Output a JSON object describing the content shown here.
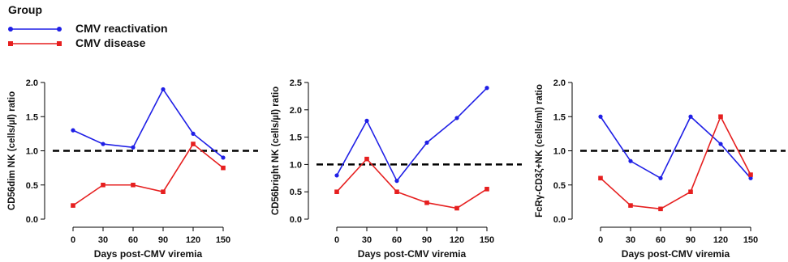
{
  "legend": {
    "title": "Group",
    "items": [
      {
        "label": "CMV reactivation",
        "color": "#1f1fe6",
        "marker": "circle"
      },
      {
        "label": "CMV disease",
        "color": "#e61f1f",
        "marker": "square"
      }
    ]
  },
  "colors": {
    "reactivation": "#1f1fe6",
    "disease": "#e61f1f",
    "reference_line": "#000000"
  },
  "chart_data": [
    {
      "type": "line",
      "xlabel": "Days post-CMV viremia",
      "ylabel": "CD56dim NK (cells/µl) ratio",
      "x": [
        0,
        30,
        60,
        90,
        120,
        150
      ],
      "xticks": [
        "0",
        "30",
        "60",
        "90",
        "120",
        "150"
      ],
      "yticks": [
        "0.0",
        "0.5",
        "1.0",
        "1.5",
        "2.0"
      ],
      "ylim": [
        0,
        2.0
      ],
      "reference_line": 1.0,
      "series": [
        {
          "name": "CMV reactivation",
          "values": [
            1.3,
            1.1,
            1.05,
            1.9,
            1.25,
            0.9
          ]
        },
        {
          "name": "CMV disease",
          "values": [
            0.2,
            0.5,
            0.5,
            0.4,
            1.1,
            0.75
          ]
        }
      ]
    },
    {
      "type": "line",
      "xlabel": "Days post-CMV viremia",
      "ylabel": "CD56bright NK (cells/µl) ratio",
      "x": [
        0,
        30,
        60,
        90,
        120,
        150
      ],
      "xticks": [
        "0",
        "30",
        "60",
        "90",
        "120",
        "150"
      ],
      "yticks": [
        "0.0",
        "0.5",
        "1.0",
        "1.5",
        "2.0",
        "2.5"
      ],
      "ylim": [
        0,
        2.5
      ],
      "reference_line": 1.0,
      "series": [
        {
          "name": "CMV reactivation",
          "values": [
            0.8,
            1.8,
            0.7,
            1.4,
            1.85,
            2.4
          ]
        },
        {
          "name": "CMV disease",
          "values": [
            0.5,
            1.1,
            0.5,
            0.3,
            0.2,
            0.55
          ]
        }
      ]
    },
    {
      "type": "line",
      "xlabel": "Days post-CMV viremia",
      "ylabel": "FcRγ-CD3ζ+NK (cells/ml) ratio",
      "x": [
        0,
        30,
        60,
        90,
        120,
        150
      ],
      "xticks": [
        "0",
        "30",
        "60",
        "90",
        "120",
        "150"
      ],
      "yticks": [
        "0.0",
        "0.5",
        "1.0",
        "1.5",
        "2.0"
      ],
      "ylim": [
        0,
        2.0
      ],
      "reference_line": 1.0,
      "series": [
        {
          "name": "CMV reactivation",
          "values": [
            1.5,
            0.85,
            0.6,
            1.5,
            1.1,
            0.6
          ]
        },
        {
          "name": "CMV disease",
          "values": [
            0.6,
            0.2,
            0.15,
            0.4,
            1.5,
            0.65
          ]
        }
      ]
    }
  ]
}
